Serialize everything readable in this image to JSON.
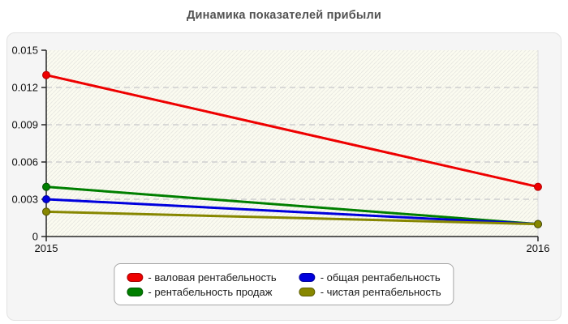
{
  "chart_data": {
    "type": "line",
    "title": "Динамика показателей прибыли",
    "categories": [
      "2015",
      "2016"
    ],
    "series": [
      {
        "name": "валовая рентабельность",
        "color": "#ee0000",
        "marker_border": "#b30000",
        "values": [
          0.013,
          0.004
        ]
      },
      {
        "name": "рентабельность продаж",
        "color": "#007f00",
        "marker_border": "#004d00",
        "values": [
          0.004,
          0.001
        ]
      },
      {
        "name": "общая рентабельность",
        "color": "#0000dd",
        "marker_border": "#000090",
        "values": [
          0.003,
          0.001
        ]
      },
      {
        "name": "чистая рентабельность",
        "color": "#878700",
        "marker_border": "#555500",
        "values": [
          0.002,
          0.001
        ]
      }
    ],
    "ylim": [
      0,
      0.015
    ],
    "yticks": [
      0,
      0.003,
      0.006,
      0.009,
      0.012,
      0.015
    ],
    "ytick_labels": [
      "0",
      "0.003",
      "0.006",
      "0.009",
      "0.012",
      "0.015"
    ],
    "xlabel": "",
    "ylabel": "",
    "grid": "horizontal-dashed",
    "legend_position": "bottom-center",
    "styles": {
      "plot_bg": "#fbfbf0",
      "hatch_line": "#e9e9e2",
      "gridline": "#d0d0d0",
      "axis": "#262626",
      "tick_label": "#111111",
      "plot_right_border": "#dcdcdc",
      "title_color": "#525252"
    }
  },
  "legend": {
    "items": [
      {
        "label": "- валовая рентабельность",
        "color": "#ee0000"
      },
      {
        "label": "- общая рентабельность",
        "color": "#0000dd"
      },
      {
        "label": "- рентабельность продаж",
        "color": "#007f00"
      },
      {
        "label": "- чистая рентабельность",
        "color": "#878700"
      }
    ]
  }
}
